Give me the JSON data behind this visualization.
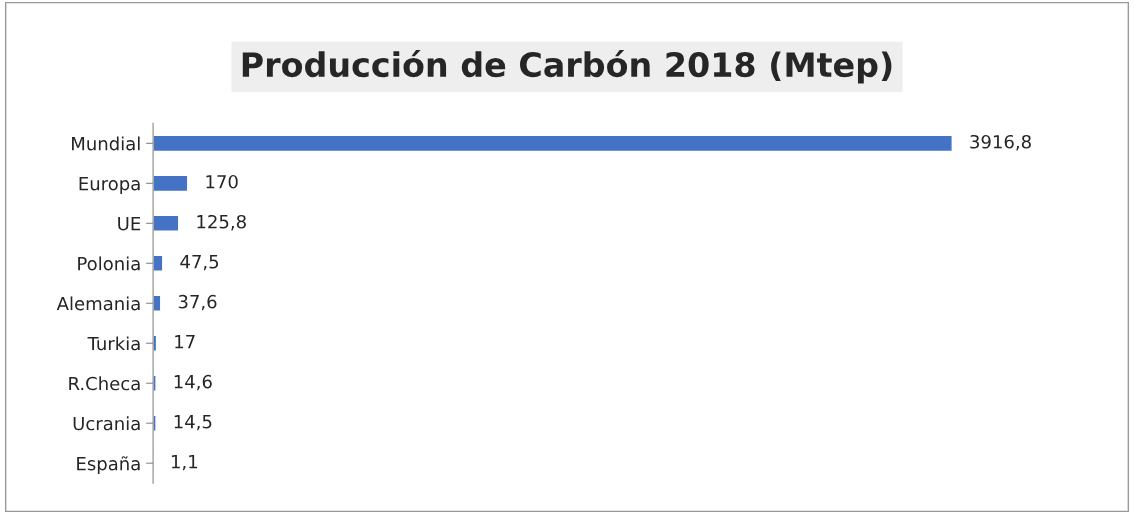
{
  "chart_data": {
    "type": "bar",
    "orientation": "horizontal",
    "title": "Producción de Carbón 2018 (Mtep)",
    "categories": [
      "Mundial",
      "Europa",
      "UE",
      "Polonia",
      "Alemania",
      "Turkia",
      "R.Checa",
      "Ucrania",
      "España"
    ],
    "values": [
      3916.8,
      170,
      125.8,
      47.5,
      37.6,
      17,
      14.6,
      14.5,
      1.1
    ],
    "value_labels": [
      "3916,8",
      "170",
      "125,8",
      "47,5",
      "37,6",
      "17",
      "14,6",
      "14,5",
      "1,1"
    ],
    "color": "#4472c4",
    "grid": false,
    "legend": false
  }
}
